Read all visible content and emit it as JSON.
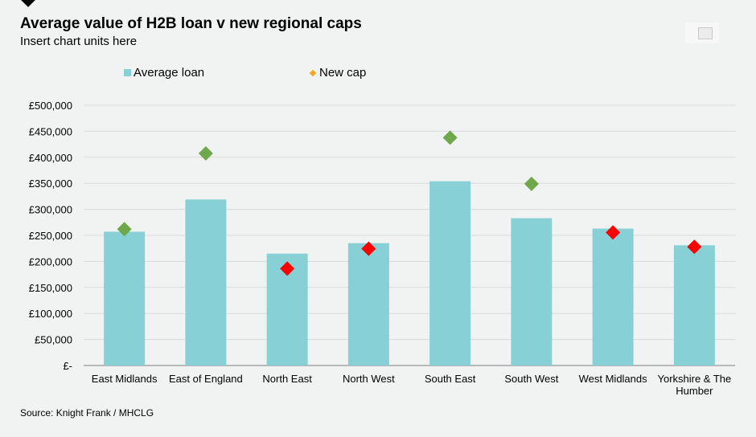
{
  "title": "Average value of H2B loan v new regional caps",
  "subtitle": "Insert chart units here",
  "source": "Source: Knight Frank / MHCLG",
  "legend": {
    "average_loan": "Average loan",
    "new_cap": "New cap"
  },
  "colors": {
    "bar": "#87d1d6",
    "cap_above": "#6fa84a",
    "cap_below": "#ff0000",
    "legend_cap": "#f5a623",
    "grid": "#d9d9d9"
  },
  "chart_data": {
    "type": "bar",
    "categories": [
      "East Midlands",
      "East of England",
      "North East",
      "North West",
      "South East",
      "South West",
      "West Midlands",
      "Yorkshire & The Humber"
    ],
    "series": [
      {
        "name": "Average loan",
        "type": "bar",
        "values": [
          257000,
          319000,
          215000,
          235000,
          354000,
          283000,
          263000,
          231000
        ]
      },
      {
        "name": "New cap",
        "type": "scatter",
        "values": [
          261900,
          407400,
          186100,
          224400,
          437600,
          349000,
          255600,
          228100
        ]
      }
    ],
    "ylim": [
      0,
      500000
    ],
    "yticks": [
      "£500,000",
      "£450,000",
      "£400,000",
      "£350,000",
      "£300,000",
      "£250,000",
      "£200,000",
      "£150,000",
      "£100,000",
      "£50,000",
      "£-"
    ],
    "grid": true,
    "legend_position": "top"
  }
}
